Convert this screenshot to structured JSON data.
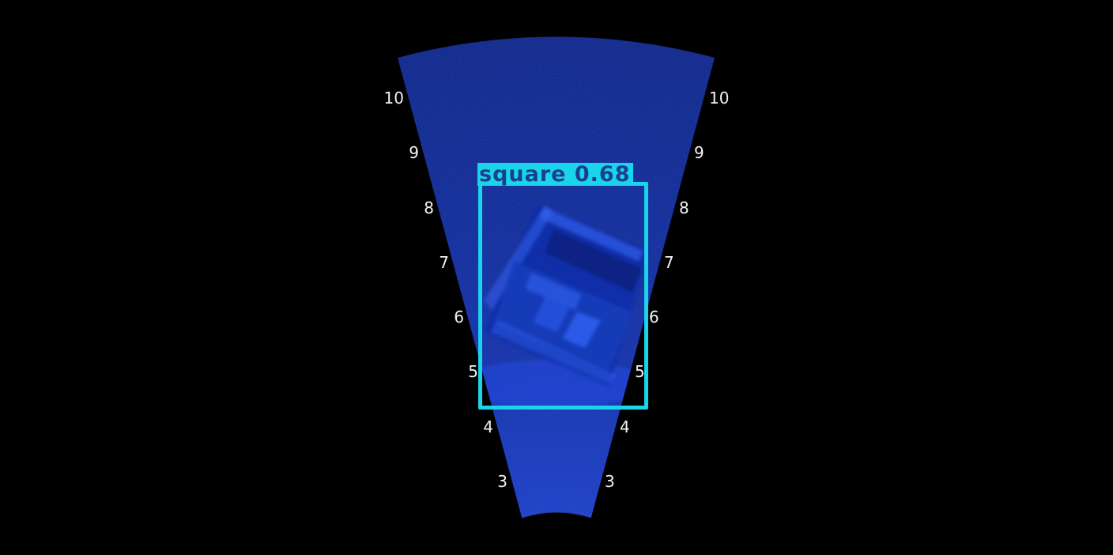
{
  "sonar": {
    "background_color": "#000000",
    "fan_color": "#0a2a9a",
    "range_labels_left": [
      "10",
      "9",
      "8",
      "7",
      "6",
      "5",
      "4",
      "3"
    ],
    "range_labels_right": [
      "10",
      "9",
      "8",
      "7",
      "6",
      "5",
      "4",
      "3"
    ]
  },
  "detection": {
    "label": "square 0.68",
    "color": "#1ad4ea",
    "text_color": "#1a3f8f"
  }
}
